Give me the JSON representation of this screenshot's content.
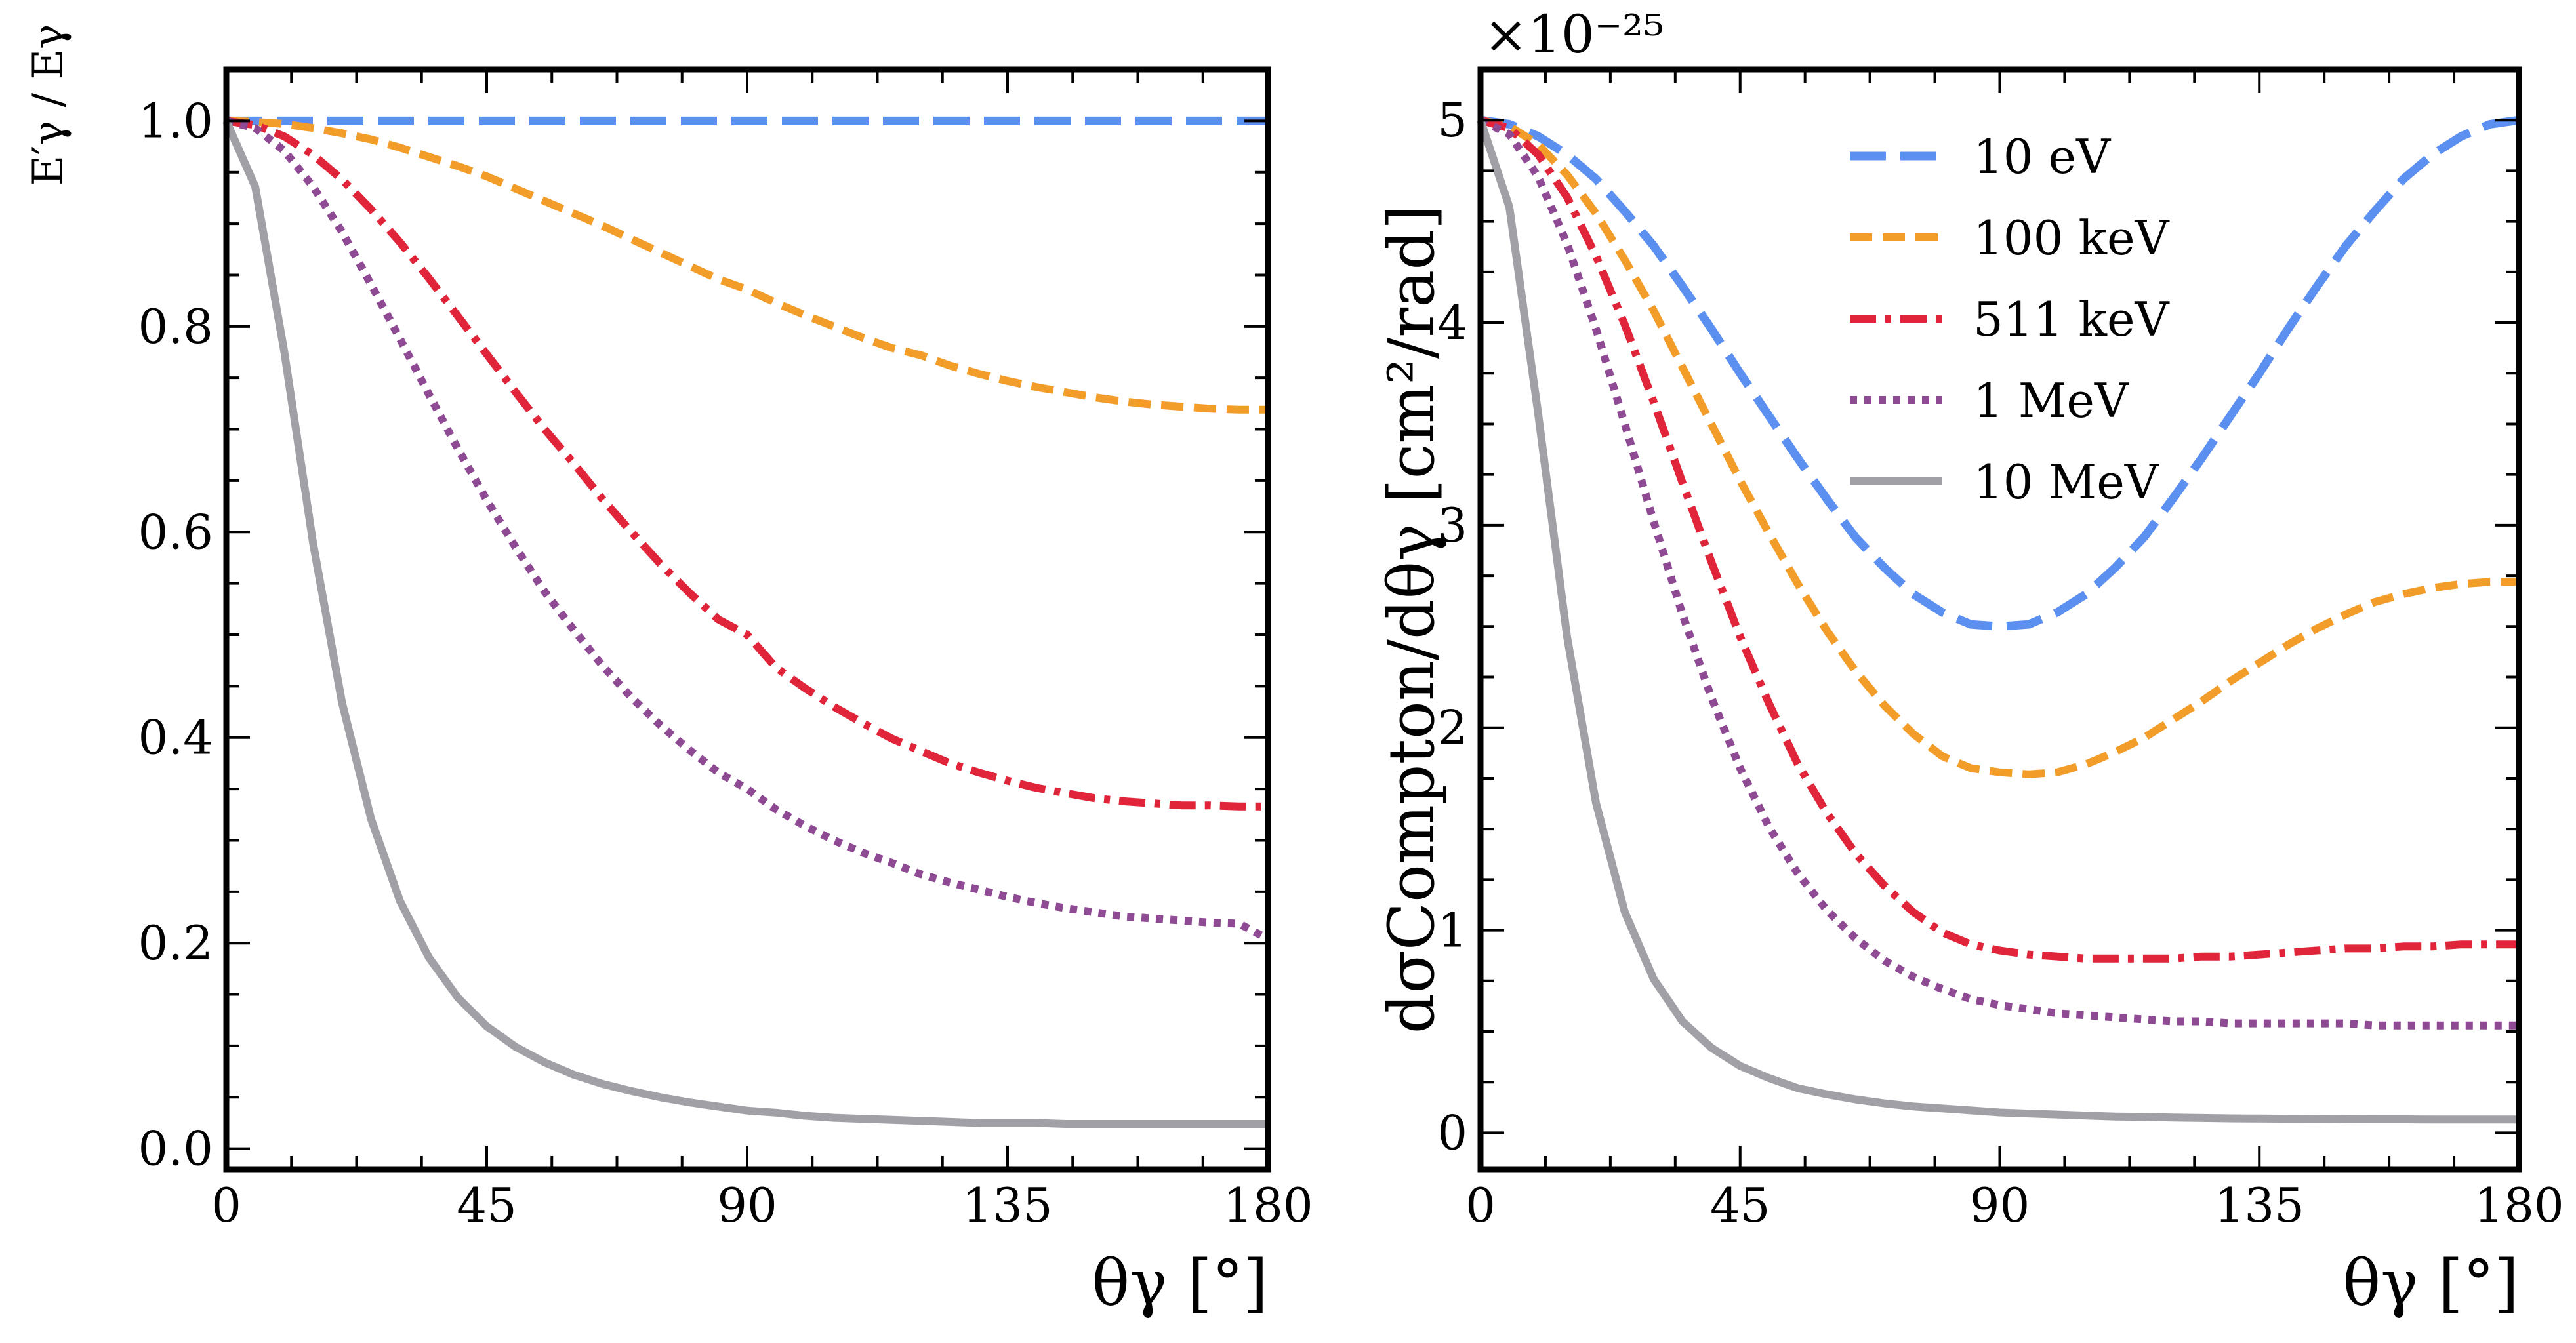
{
  "colors": {
    "blue": "#5b8ff0",
    "orange": "#f29d2a",
    "red": "#e0253a",
    "purple": "#8e4a93",
    "gray": "#a0a0a6"
  },
  "chart_data": [
    {
      "type": "line",
      "title": "",
      "xlabel": "θγ [°]",
      "ylabel": "E′γ / Eγ",
      "xlim": [
        0,
        180
      ],
      "ylim": [
        -0.02,
        1.05
      ],
      "xticks": [
        "0",
        "45",
        "90",
        "135",
        "180"
      ],
      "yticks": [
        "0.0",
        "0.2",
        "0.4",
        "0.6",
        "0.8",
        "1.0"
      ],
      "grid": false,
      "legend": "none",
      "x": [
        0,
        5,
        10,
        15,
        20,
        25,
        30,
        35,
        40,
        45,
        50,
        55,
        60,
        65,
        70,
        75,
        80,
        85,
        90,
        95,
        100,
        105,
        110,
        115,
        120,
        125,
        130,
        135,
        140,
        145,
        150,
        155,
        160,
        165,
        170,
        175,
        180
      ],
      "series": [
        {
          "name": "10 eV",
          "color": "blue",
          "style": "long-dash",
          "values": [
            1.0,
            1.0,
            1.0,
            1.0,
            1.0,
            1.0,
            1.0,
            1.0,
            1.0,
            1.0,
            1.0,
            1.0,
            1.0,
            1.0,
            1.0,
            1.0,
            1.0,
            1.0,
            1.0,
            1.0,
            1.0,
            1.0,
            1.0,
            1.0,
            1.0,
            1.0,
            1.0,
            1.0,
            1.0,
            1.0,
            1.0,
            1.0,
            1.0,
            1.0,
            1.0,
            1.0,
            1.0
          ]
        },
        {
          "name": "100 keV",
          "color": "orange",
          "style": "dash",
          "values": [
            1.0,
            0.999,
            0.997,
            0.993,
            0.988,
            0.982,
            0.974,
            0.965,
            0.956,
            0.946,
            0.934,
            0.922,
            0.91,
            0.898,
            0.885,
            0.872,
            0.859,
            0.846,
            0.836,
            0.823,
            0.811,
            0.8,
            0.789,
            0.779,
            0.772,
            0.762,
            0.754,
            0.747,
            0.741,
            0.736,
            0.731,
            0.727,
            0.724,
            0.722,
            0.72,
            0.719,
            0.719
          ]
        },
        {
          "name": "511 keV",
          "color": "red",
          "style": "dash-dot",
          "values": [
            1.0,
            0.996,
            0.985,
            0.967,
            0.943,
            0.914,
            0.882,
            0.847,
            0.81,
            0.773,
            0.736,
            0.7,
            0.667,
            0.632,
            0.6,
            0.569,
            0.541,
            0.515,
            0.5,
            0.468,
            0.448,
            0.43,
            0.414,
            0.399,
            0.387,
            0.375,
            0.366,
            0.358,
            0.351,
            0.346,
            0.341,
            0.338,
            0.336,
            0.334,
            0.334,
            0.333,
            0.333
          ]
        },
        {
          "name": "1 MeV",
          "color": "purple",
          "style": "dot",
          "values": [
            1.0,
            0.993,
            0.971,
            0.936,
            0.892,
            0.841,
            0.788,
            0.734,
            0.681,
            0.631,
            0.585,
            0.542,
            0.505,
            0.47,
            0.439,
            0.412,
            0.388,
            0.366,
            0.35,
            0.33,
            0.314,
            0.3,
            0.288,
            0.278,
            0.267,
            0.259,
            0.252,
            0.245,
            0.239,
            0.234,
            0.23,
            0.226,
            0.224,
            0.222,
            0.22,
            0.219,
            0.204
          ]
        },
        {
          "name": "10 MeV",
          "color": "gray",
          "style": "solid",
          "values": [
            1.0,
            0.936,
            0.776,
            0.589,
            0.434,
            0.321,
            0.241,
            0.186,
            0.147,
            0.119,
            0.099,
            0.084,
            0.072,
            0.063,
            0.056,
            0.05,
            0.045,
            0.041,
            0.037,
            0.035,
            0.032,
            0.03,
            0.029,
            0.028,
            0.027,
            0.026,
            0.025,
            0.025,
            0.025,
            0.024,
            0.024,
            0.024,
            0.024,
            0.024,
            0.024,
            0.024,
            0.024
          ]
        }
      ]
    },
    {
      "type": "line",
      "title": "",
      "xlabel": "θγ [°]",
      "ylabel": "dσCompton/dθγ [cm²/rad]",
      "scale_factor": "×10⁻²⁵",
      "xlim": [
        0,
        180
      ],
      "ylim": [
        -0.18,
        5.25
      ],
      "xticks": [
        "0",
        "45",
        "90",
        "135",
        "180"
      ],
      "yticks": [
        "0",
        "1",
        "2",
        "3",
        "4",
        "5"
      ],
      "grid": false,
      "legend": "top-right",
      "x": [
        0,
        5,
        10,
        15,
        20,
        25,
        30,
        35,
        40,
        45,
        50,
        55,
        60,
        65,
        70,
        75,
        80,
        85,
        90,
        95,
        100,
        105,
        110,
        115,
        120,
        125,
        130,
        135,
        140,
        145,
        150,
        155,
        160,
        165,
        170,
        175,
        180
      ],
      "series": [
        {
          "name": "10 eV",
          "color": "blue",
          "style": "long-dash",
          "values": [
            5.0,
            4.98,
            4.92,
            4.83,
            4.71,
            4.55,
            4.38,
            4.18,
            3.97,
            3.75,
            3.54,
            3.33,
            3.13,
            2.94,
            2.79,
            2.66,
            2.57,
            2.51,
            2.5,
            2.51,
            2.57,
            2.66,
            2.79,
            2.94,
            3.13,
            3.33,
            3.54,
            3.75,
            3.97,
            4.18,
            4.38,
            4.55,
            4.71,
            4.83,
            4.92,
            4.98,
            5.0
          ]
        },
        {
          "name": "100 keV",
          "color": "orange",
          "style": "dash",
          "values": [
            5.0,
            4.97,
            4.88,
            4.73,
            4.54,
            4.31,
            4.06,
            3.78,
            3.5,
            3.22,
            2.96,
            2.71,
            2.48,
            2.28,
            2.11,
            1.97,
            1.86,
            1.8,
            1.78,
            1.77,
            1.78,
            1.82,
            1.88,
            1.95,
            2.04,
            2.13,
            2.23,
            2.32,
            2.41,
            2.49,
            2.56,
            2.62,
            2.66,
            2.69,
            2.71,
            2.72,
            2.72
          ]
        },
        {
          "name": "511 keV",
          "color": "red",
          "style": "dash-dot",
          "values": [
            5.0,
            4.96,
            4.83,
            4.62,
            4.33,
            3.99,
            3.61,
            3.21,
            2.82,
            2.45,
            2.12,
            1.82,
            1.58,
            1.38,
            1.22,
            1.09,
            0.99,
            0.93,
            0.9,
            0.88,
            0.87,
            0.86,
            0.86,
            0.86,
            0.86,
            0.87,
            0.87,
            0.88,
            0.89,
            0.9,
            0.91,
            0.91,
            0.92,
            0.92,
            0.93,
            0.93,
            0.93
          ]
        },
        {
          "name": "1 MeV",
          "color": "purple",
          "style": "dot",
          "values": [
            5.0,
            4.93,
            4.72,
            4.39,
            3.97,
            3.5,
            3.02,
            2.56,
            2.15,
            1.8,
            1.51,
            1.28,
            1.1,
            0.96,
            0.85,
            0.77,
            0.71,
            0.66,
            0.63,
            0.61,
            0.59,
            0.58,
            0.57,
            0.56,
            0.55,
            0.55,
            0.54,
            0.54,
            0.54,
            0.54,
            0.54,
            0.53,
            0.53,
            0.53,
            0.53,
            0.53,
            0.53
          ]
        },
        {
          "name": "10 MeV",
          "color": "gray",
          "style": "solid",
          "values": [
            5.0,
            4.57,
            3.55,
            2.45,
            1.63,
            1.09,
            0.76,
            0.55,
            0.42,
            0.33,
            0.27,
            0.22,
            0.19,
            0.165,
            0.145,
            0.13,
            0.12,
            0.11,
            0.1,
            0.095,
            0.09,
            0.085,
            0.08,
            0.078,
            0.075,
            0.073,
            0.071,
            0.07,
            0.069,
            0.068,
            0.067,
            0.066,
            0.066,
            0.065,
            0.065,
            0.065,
            0.065
          ]
        }
      ]
    }
  ]
}
